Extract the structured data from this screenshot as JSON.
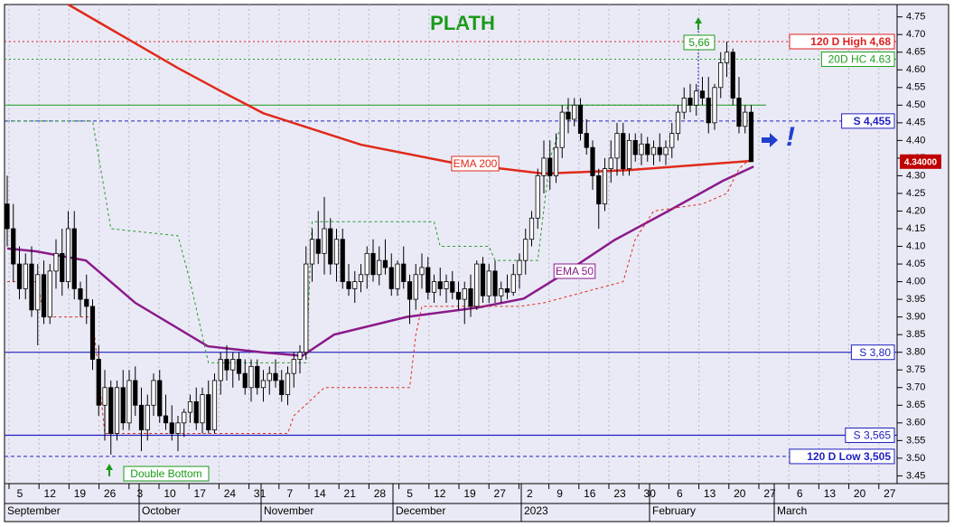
{
  "chart_data": {
    "type": "candlestick",
    "title": "PLATH",
    "title_color": "#1a9a1a",
    "ylim": [
      3.428,
      4.785
    ],
    "yticks": [
      {
        "value": 3.45,
        "label": "3.45"
      },
      {
        "value": 3.5,
        "label": "3.50"
      },
      {
        "value": 3.55,
        "label": "3.55"
      },
      {
        "value": 3.6,
        "label": "3.60"
      },
      {
        "value": 3.65,
        "label": "3.65"
      },
      {
        "value": 3.7,
        "label": "3.70"
      },
      {
        "value": 3.75,
        "label": "3.75"
      },
      {
        "value": 3.8,
        "label": "3.80"
      },
      {
        "value": 3.85,
        "label": "3.85"
      },
      {
        "value": 3.9,
        "label": "3.90"
      },
      {
        "value": 3.95,
        "label": "3.95"
      },
      {
        "value": 4.0,
        "label": "4.00"
      },
      {
        "value": 4.05,
        "label": "4.05"
      },
      {
        "value": 4.1,
        "label": "4.10"
      },
      {
        "value": 4.15,
        "label": "4.15"
      },
      {
        "value": 4.2,
        "label": "4.20"
      },
      {
        "value": 4.25,
        "label": "4.25"
      },
      {
        "value": 4.3,
        "label": "4.30"
      },
      {
        "value": 4.35,
        "label": "4.35"
      },
      {
        "value": 4.4,
        "label": "4.40"
      },
      {
        "value": 4.45,
        "label": "4.45"
      },
      {
        "value": 4.5,
        "label": "4.50"
      },
      {
        "value": 4.55,
        "label": "4.55"
      },
      {
        "value": 4.6,
        "label": "4.60"
      },
      {
        "value": 4.65,
        "label": "4.65"
      },
      {
        "value": 4.7,
        "label": "4.70"
      },
      {
        "value": 4.75,
        "label": "4.75"
      }
    ],
    "day_labels": [
      "5",
      "12",
      "19",
      "26",
      "3",
      "10",
      "17",
      "24",
      "31",
      "7",
      "14",
      "21",
      "28",
      "5",
      "12",
      "19",
      "27",
      "2",
      "9",
      "16",
      "23",
      "30",
      "6",
      "13",
      "20",
      "27",
      "6",
      "13",
      "20",
      "27"
    ],
    "month_labels": [
      "September",
      "October",
      "November",
      "December",
      "2023",
      "February",
      "March"
    ],
    "ohlc": [
      [
        4.22,
        4.3,
        4.1,
        4.15
      ],
      [
        4.15,
        4.22,
        4.0,
        4.05
      ],
      [
        4.05,
        4.1,
        3.95,
        3.98
      ],
      [
        3.98,
        4.08,
        3.95,
        4.05
      ],
      [
        4.05,
        4.1,
        3.9,
        3.92
      ],
      [
        3.92,
        4.05,
        3.82,
        4.02
      ],
      [
        4.02,
        4.06,
        3.88,
        3.9
      ],
      [
        3.9,
        4.05,
        3.88,
        4.03
      ],
      [
        4.03,
        4.12,
        3.98,
        4.08
      ],
      [
        4.08,
        4.15,
        3.96,
        4.0
      ],
      [
        4.0,
        4.2,
        3.98,
        4.15
      ],
      [
        4.15,
        4.2,
        3.95,
        3.98
      ],
      [
        3.98,
        4.0,
        3.9,
        3.95
      ],
      [
        3.95,
        4.02,
        3.88,
        3.93
      ],
      [
        3.93,
        3.95,
        3.75,
        3.78
      ],
      [
        3.78,
        3.82,
        3.62,
        3.65
      ],
      [
        3.65,
        3.75,
        3.55,
        3.7
      ],
      [
        3.7,
        3.72,
        3.51,
        3.57
      ],
      [
        3.57,
        3.72,
        3.55,
        3.7
      ],
      [
        3.7,
        3.75,
        3.58,
        3.6
      ],
      [
        3.6,
        3.75,
        3.58,
        3.72
      ],
      [
        3.72,
        3.76,
        3.62,
        3.65
      ],
      [
        3.65,
        3.7,
        3.52,
        3.58
      ],
      [
        3.58,
        3.68,
        3.55,
        3.65
      ],
      [
        3.65,
        3.74,
        3.62,
        3.72
      ],
      [
        3.72,
        3.75,
        3.6,
        3.62
      ],
      [
        3.62,
        3.68,
        3.58,
        3.6
      ],
      [
        3.6,
        3.65,
        3.55,
        3.57
      ],
      [
        3.57,
        3.62,
        3.52,
        3.6
      ],
      [
        3.6,
        3.64,
        3.56,
        3.63
      ],
      [
        3.63,
        3.68,
        3.6,
        3.66
      ],
      [
        3.66,
        3.7,
        3.58,
        3.6
      ],
      [
        3.6,
        3.7,
        3.57,
        3.68
      ],
      [
        3.68,
        3.72,
        3.57,
        3.58
      ],
      [
        3.58,
        3.74,
        3.57,
        3.72
      ],
      [
        3.72,
        3.8,
        3.68,
        3.78
      ],
      [
        3.78,
        3.82,
        3.72,
        3.75
      ],
      [
        3.75,
        3.8,
        3.7,
        3.78
      ],
      [
        3.78,
        3.8,
        3.72,
        3.74
      ],
      [
        3.74,
        3.78,
        3.68,
        3.7
      ],
      [
        3.7,
        3.78,
        3.66,
        3.76
      ],
      [
        3.76,
        3.78,
        3.68,
        3.7
      ],
      [
        3.7,
        3.75,
        3.66,
        3.72
      ],
      [
        3.72,
        3.76,
        3.68,
        3.74
      ],
      [
        3.74,
        3.78,
        3.7,
        3.72
      ],
      [
        3.72,
        3.75,
        3.66,
        3.68
      ],
      [
        3.68,
        3.76,
        3.65,
        3.74
      ],
      [
        3.74,
        3.8,
        3.7,
        3.78
      ],
      [
        3.78,
        3.82,
        3.74,
        3.8
      ],
      [
        3.8,
        4.1,
        3.78,
        4.05
      ],
      [
        4.05,
        4.15,
        4.0,
        4.12
      ],
      [
        4.12,
        4.2,
        4.05,
        4.08
      ],
      [
        4.08,
        4.24,
        4.02,
        4.15
      ],
      [
        4.15,
        4.18,
        4.02,
        4.05
      ],
      [
        4.05,
        4.15,
        4.0,
        4.12
      ],
      [
        4.12,
        4.15,
        3.98,
        4.0
      ],
      [
        4.0,
        4.05,
        3.96,
        3.98
      ],
      [
        3.98,
        4.03,
        3.94,
        4.0
      ],
      [
        4.0,
        4.05,
        3.97,
        4.02
      ],
      [
        4.02,
        4.1,
        3.98,
        4.08
      ],
      [
        4.08,
        4.12,
        4.0,
        4.02
      ],
      [
        4.02,
        4.1,
        3.99,
        4.06
      ],
      [
        4.06,
        4.12,
        4.02,
        4.04
      ],
      [
        4.04,
        4.08,
        3.96,
        3.98
      ],
      [
        3.98,
        4.06,
        3.96,
        4.05
      ],
      [
        4.05,
        4.1,
        3.98,
        4.0
      ],
      [
        4.0,
        4.02,
        3.88,
        3.95
      ],
      [
        3.95,
        4.05,
        3.92,
        4.02
      ],
      [
        4.02,
        4.08,
        3.98,
        4.04
      ],
      [
        4.04,
        4.07,
        3.95,
        3.97
      ],
      [
        3.97,
        4.02,
        3.94,
        4.0
      ],
      [
        4.0,
        4.04,
        3.96,
        3.98
      ],
      [
        3.98,
        4.02,
        3.94,
        4.0
      ],
      [
        4.0,
        4.03,
        3.95,
        3.97
      ],
      [
        3.97,
        4.0,
        3.92,
        3.95
      ],
      [
        3.95,
        4.0,
        3.88,
        3.98
      ],
      [
        3.98,
        4.02,
        3.9,
        3.93
      ],
      [
        3.93,
        4.06,
        3.92,
        4.05
      ],
      [
        4.05,
        4.07,
        3.94,
        3.96
      ],
      [
        3.96,
        4.05,
        3.94,
        4.03
      ],
      [
        4.03,
        4.06,
        3.94,
        3.96
      ],
      [
        3.96,
        4.0,
        3.94,
        3.98
      ],
      [
        3.98,
        4.02,
        3.95,
        3.97
      ],
      [
        3.97,
        4.05,
        3.96,
        4.02
      ],
      [
        4.02,
        4.08,
        3.98,
        4.06
      ],
      [
        4.06,
        4.15,
        4.02,
        4.12
      ],
      [
        4.12,
        4.2,
        4.1,
        4.18
      ],
      [
        4.18,
        4.32,
        4.15,
        4.3
      ],
      [
        4.3,
        4.4,
        4.25,
        4.35
      ],
      [
        4.35,
        4.4,
        4.26,
        4.3
      ],
      [
        4.3,
        4.42,
        4.28,
        4.38
      ],
      [
        4.38,
        4.5,
        4.35,
        4.48
      ],
      [
        4.48,
        4.52,
        4.42,
        4.46
      ],
      [
        4.46,
        4.52,
        4.44,
        4.5
      ],
      [
        4.5,
        4.52,
        4.4,
        4.42
      ],
      [
        4.42,
        4.46,
        4.36,
        4.38
      ],
      [
        4.38,
        4.4,
        4.26,
        4.3
      ],
      [
        4.3,
        4.32,
        4.15,
        4.22
      ],
      [
        4.22,
        4.35,
        4.2,
        4.32
      ],
      [
        4.32,
        4.4,
        4.28,
        4.35
      ],
      [
        4.35,
        4.45,
        4.3,
        4.42
      ],
      [
        4.42,
        4.45,
        4.3,
        4.32
      ],
      [
        4.32,
        4.42,
        4.3,
        4.4
      ],
      [
        4.4,
        4.42,
        4.34,
        4.36
      ],
      [
        4.36,
        4.42,
        4.33,
        4.39
      ],
      [
        4.39,
        4.41,
        4.34,
        4.36
      ],
      [
        4.36,
        4.4,
        4.33,
        4.38
      ],
      [
        4.38,
        4.42,
        4.34,
        4.36
      ],
      [
        4.36,
        4.4,
        4.33,
        4.38
      ],
      [
        4.38,
        4.45,
        4.35,
        4.42
      ],
      [
        4.42,
        4.5,
        4.4,
        4.48
      ],
      [
        4.48,
        4.55,
        4.46,
        4.52
      ],
      [
        4.52,
        4.56,
        4.48,
        4.5
      ],
      [
        4.5,
        4.56,
        4.47,
        4.54
      ],
      [
        4.54,
        4.58,
        4.5,
        4.52
      ],
      [
        4.52,
        4.58,
        4.42,
        4.45
      ],
      [
        4.45,
        4.56,
        4.43,
        4.55
      ],
      [
        4.55,
        4.65,
        4.52,
        4.62
      ],
      [
        4.62,
        4.68,
        4.58,
        4.65
      ],
      [
        4.65,
        4.66,
        4.5,
        4.52
      ],
      [
        4.52,
        4.58,
        4.42,
        4.44
      ],
      [
        4.44,
        4.5,
        4.42,
        4.48
      ],
      [
        4.48,
        4.5,
        4.34,
        4.34
      ]
    ],
    "lines": [
      {
        "name": "EMA 200",
        "color": "#e02a1a",
        "x": [
          10,
          21,
          28,
          35,
          42,
          58,
          73,
          88,
          102,
          122
        ],
        "values": [
          4.785,
          4.675,
          4.605,
          4.54,
          4.477,
          4.388,
          4.337,
          4.306,
          4.316,
          4.342
        ]
      },
      {
        "name": "EMA 50",
        "color": "#8a1a8a",
        "x": [
          0,
          4.7,
          12.9,
          21,
          32.9,
          41.8,
          48.4,
          53.6,
          65.5,
          77.3,
          84.7,
          90.7,
          99.6,
          108.4,
          117.3,
          122.4
        ],
        "values": [
          4.094,
          4.086,
          4.06,
          3.94,
          3.817,
          3.8,
          3.79,
          3.85,
          3.9,
          3.927,
          3.952,
          4.016,
          4.118,
          4.2,
          4.285,
          4.326
        ]
      },
      {
        "color": "#2a9a2a",
        "dash": true,
        "x": [
          0,
          14,
          17,
          28,
          30,
          33,
          49,
          50,
          70,
          71,
          79,
          80,
          87,
          89,
          92,
          110
        ],
        "values": [
          4.455,
          4.455,
          4.15,
          4.13,
          4.0,
          3.77,
          3.77,
          4.17,
          4.17,
          4.1,
          4.1,
          4.06,
          4.06,
          4.35,
          4.5,
          4.5
        ]
      },
      {
        "color": "#e02a1a",
        "dash": true,
        "x": [
          0,
          5,
          6,
          14,
          16,
          46,
          47,
          52,
          66,
          67,
          68,
          84,
          88,
          101,
          103,
          106,
          114,
          118,
          120,
          122
        ],
        "values": [
          4.0,
          4.0,
          3.9,
          3.9,
          3.57,
          3.57,
          3.62,
          3.7,
          3.7,
          3.85,
          3.93,
          3.93,
          3.94,
          4.0,
          4.12,
          4.2,
          4.22,
          4.25,
          4.32,
          4.35
        ]
      }
    ],
    "levels": [
      {
        "value": 4.68,
        "label": "120 D High 4,68",
        "color": "#e02020",
        "style": "dotted"
      },
      {
        "value": 4.63,
        "label": "20D HC 4.63",
        "color": "#20a020",
        "style": "dotted"
      },
      {
        "value": 4.5,
        "color": "#30a030",
        "style": "solid"
      },
      {
        "value": 4.455,
        "label": "S 4,455",
        "color": "#2020c0",
        "style": "dashed"
      },
      {
        "value": 3.8,
        "label": "S 3,80",
        "color": "#2020c0",
        "style": "solid"
      },
      {
        "value": 3.565,
        "label": "S 3,565",
        "color": "#2020c0",
        "style": "solid"
      },
      {
        "value": 3.505,
        "label": "120 D Low 3,505",
        "color": "#2020c0",
        "style": "dashed"
      }
    ],
    "last_price": {
      "value": 4.34,
      "label": "4.34000"
    },
    "annotations": {
      "peak_label": "5,66",
      "pattern_label": "Double Bottom",
      "signal": "!"
    }
  }
}
